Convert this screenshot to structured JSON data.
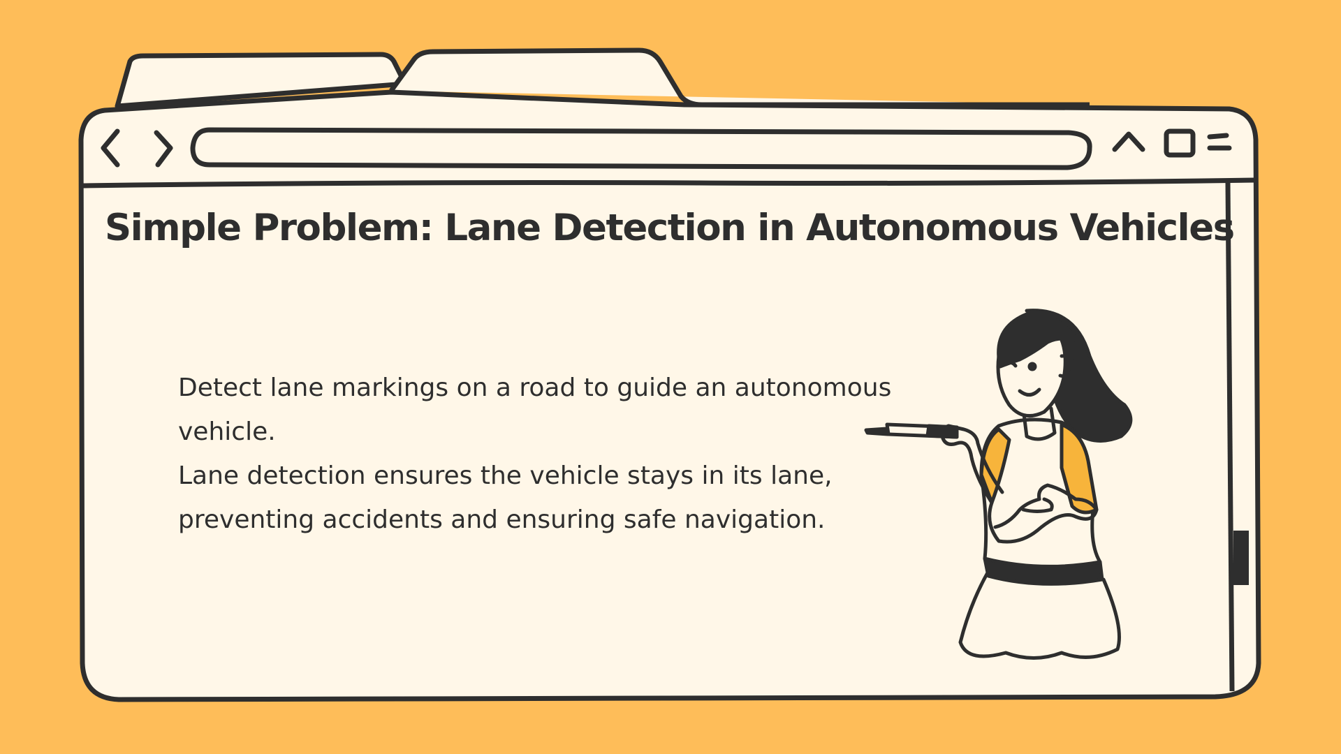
{
  "slide": {
    "title": "Simple Problem: Lane Detection in Autonomous Vehicles",
    "paragraphs": [
      "Detect lane markings on a road to guide an autonomous vehicle.",
      "Lane detection ensures the vehicle stays in its lane, preventing accidents and ensuring safe navigation."
    ]
  },
  "browser": {
    "address_value": "",
    "icons": {
      "back": "chevron-left-icon",
      "forward": "chevron-right-icon",
      "up": "caret-up-icon",
      "maximize": "square-icon",
      "menu": "menu-lines-icon"
    }
  },
  "illustration": {
    "subject": "woman-pointing-with-marker",
    "accent_color": "#F7B43B"
  },
  "colors": {
    "background": "#FEBD59",
    "window_fill": "#FFF7E8",
    "stroke": "#2E2E2E",
    "accent": "#F7B43B"
  }
}
